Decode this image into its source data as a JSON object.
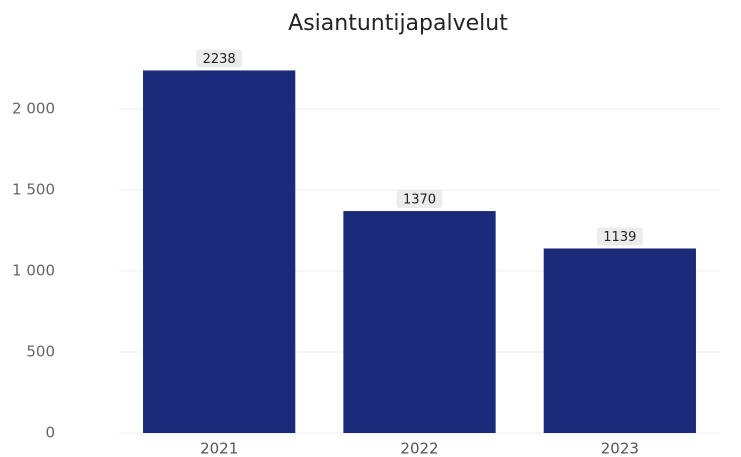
{
  "chart_data": {
    "type": "bar",
    "title": "Asiantuntijapalvelut",
    "categories": [
      "2021",
      "2022",
      "2023"
    ],
    "values": [
      2238,
      1370,
      1139
    ],
    "color": "#1b2a7b",
    "ylim": [
      0,
      2300
    ],
    "yticks": [
      0,
      500,
      {
        "value": 1000,
        "label": "1 000"
      },
      {
        "value": 1500,
        "label": "1 500"
      },
      {
        "value": 2000,
        "label": "2 000"
      }
    ],
    "grid": true
  }
}
